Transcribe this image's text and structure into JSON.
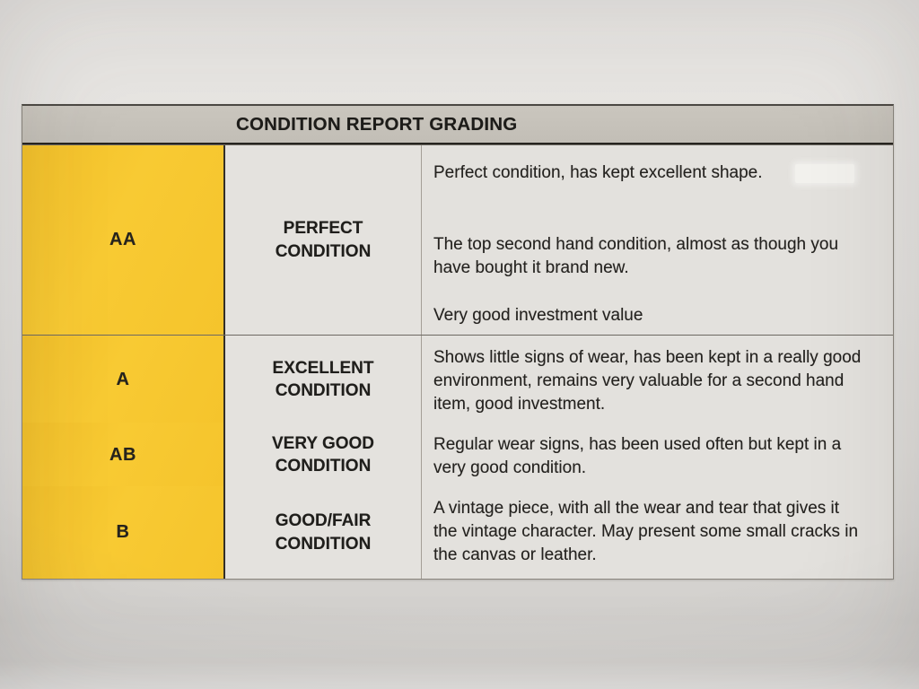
{
  "table": {
    "title": "CONDITION REPORT GRADING",
    "rows": [
      {
        "grade": "AA",
        "condition": "PERFECT CONDITION",
        "descriptions": [
          "Perfect condition, has kept excellent shape.",
          "The top second hand condition, almost as though you have bought it brand new.",
          "Very good investment value"
        ]
      },
      {
        "grade": "A",
        "condition": "EXCELLENT CONDITION",
        "descriptions": [
          "Shows little signs of wear, has been kept in a really good environment, remains very valuable for a second hand item, good investment."
        ]
      },
      {
        "grade": "AB",
        "condition": "VERY GOOD CONDITION",
        "descriptions": [
          "Regular wear signs, has been used often but kept in a very good condition."
        ]
      },
      {
        "grade": "B",
        "condition": "GOOD/FAIR CONDITION",
        "descriptions": [
          "A vintage piece, with all the wear and tear that gives it the vintage character. May present some small cracks in the canvas or leather."
        ]
      }
    ],
    "colors": {
      "grade_column": "#f6c52f",
      "header_band": "#c4c0b8",
      "cell_background": "#e3e1dd",
      "paper_background": "#e0dedb",
      "text": "#23211e"
    }
  }
}
